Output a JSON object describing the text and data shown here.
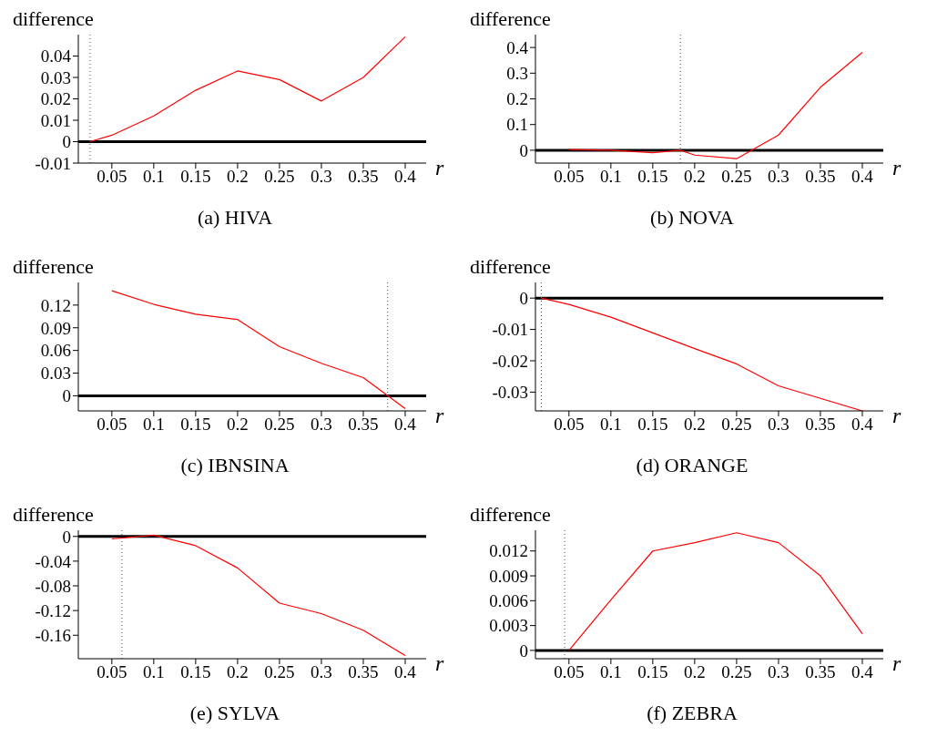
{
  "chart_data": [
    {
      "type": "line",
      "title": "(a) HIVA",
      "xlabel": "r",
      "ylabel": "difference",
      "x": [
        0.024,
        0.05,
        0.1,
        0.15,
        0.2,
        0.25,
        0.3,
        0.35,
        0.4
      ],
      "series": [
        {
          "color": "#ff0000",
          "values": [
            0,
            0.003,
            0.012,
            0.024,
            0.033,
            0.029,
            0.019,
            0.03,
            0.049
          ]
        }
      ],
      "xlim": [
        0.01,
        0.425
      ],
      "xticks": [
        0.05,
        0.1,
        0.15,
        0.2,
        0.25,
        0.3,
        0.35,
        0.4
      ],
      "ylim": [
        -0.01,
        0.05
      ],
      "yticks": [
        -0.01,
        0,
        0.01,
        0.02,
        0.03,
        0.04
      ],
      "ref_lines": [
        {
          "axis": "y",
          "value": 0,
          "color": "#000000",
          "line_style": "solid"
        },
        {
          "axis": "x",
          "value": 0.024,
          "color": "#555555",
          "line_style": "dotted"
        }
      ]
    },
    {
      "type": "line",
      "title": "(b) NOVA",
      "xlabel": "r",
      "ylabel": "difference",
      "x": [
        0.05,
        0.1,
        0.15,
        0.183,
        0.2,
        0.25,
        0.3,
        0.35,
        0.4
      ],
      "series": [
        {
          "color": "#ff0000",
          "values": [
            0.003,
            0,
            -0.01,
            0,
            -0.019,
            -0.033,
            0.059,
            0.245,
            0.381
          ]
        }
      ],
      "xlim": [
        0.01,
        0.425
      ],
      "xticks": [
        0.05,
        0.1,
        0.15,
        0.2,
        0.25,
        0.3,
        0.35,
        0.4
      ],
      "ylim": [
        -0.05,
        0.45
      ],
      "yticks": [
        0,
        0.1,
        0.2,
        0.3,
        0.4
      ],
      "ref_lines": [
        {
          "axis": "y",
          "value": 0,
          "color": "#000000",
          "line_style": "solid"
        },
        {
          "axis": "x",
          "value": 0.183,
          "color": "#555555",
          "line_style": "dotted"
        }
      ]
    },
    {
      "type": "line",
      "title": "(c) IBNSINA",
      "xlabel": "r",
      "ylabel": "difference",
      "x": [
        0.05,
        0.1,
        0.15,
        0.2,
        0.25,
        0.3,
        0.35,
        0.4
      ],
      "series": [
        {
          "color": "#ff0000",
          "values": [
            0.139,
            0.121,
            0.108,
            0.101,
            0.065,
            0.043,
            0.024,
            -0.017
          ]
        }
      ],
      "xlim": [
        0.01,
        0.425
      ],
      "xticks": [
        0.05,
        0.1,
        0.15,
        0.2,
        0.25,
        0.3,
        0.35,
        0.4
      ],
      "ylim": [
        -0.02,
        0.15
      ],
      "yticks": [
        0,
        0.03,
        0.06,
        0.09,
        0.12
      ],
      "ref_lines": [
        {
          "axis": "y",
          "value": 0,
          "color": "#000000",
          "line_style": "solid"
        },
        {
          "axis": "x",
          "value": 0.379,
          "color": "#555555",
          "line_style": "dotted"
        }
      ]
    },
    {
      "type": "line",
      "title": "(d) ORANGE",
      "xlabel": "r",
      "ylabel": "difference",
      "x": [
        0.017,
        0.05,
        0.1,
        0.15,
        0.2,
        0.25,
        0.3,
        0.35,
        0.4
      ],
      "series": [
        {
          "color": "#ff0000",
          "values": [
            0,
            -0.002,
            -0.0061,
            -0.0111,
            -0.0161,
            -0.021,
            -0.028,
            -0.032,
            -0.036
          ]
        }
      ],
      "xlim": [
        0.01,
        0.425
      ],
      "xticks": [
        0.05,
        0.1,
        0.15,
        0.2,
        0.25,
        0.3,
        0.35,
        0.4
      ],
      "ylim": [
        -0.036,
        0.005
      ],
      "yticks": [
        -0.03,
        -0.02,
        -0.01,
        0
      ],
      "ref_lines": [
        {
          "axis": "y",
          "value": 0,
          "color": "#000000",
          "line_style": "solid"
        },
        {
          "axis": "x",
          "value": 0.017,
          "color": "#555555",
          "line_style": "dotted"
        }
      ]
    },
    {
      "type": "line",
      "title": "(e) SYLVA",
      "xlabel": "r",
      "ylabel": "difference",
      "x": [
        0.05,
        0.1,
        0.15,
        0.2,
        0.25,
        0.3,
        0.35,
        0.4
      ],
      "series": [
        {
          "color": "#ff0000",
          "values": [
            -0.004,
            0.002,
            -0.015,
            -0.051,
            -0.108,
            -0.125,
            -0.152,
            -0.193
          ]
        }
      ],
      "xlim": [
        0.01,
        0.425
      ],
      "xticks": [
        0.05,
        0.1,
        0.15,
        0.2,
        0.25,
        0.3,
        0.35,
        0.4
      ],
      "ylim": [
        -0.198,
        0.01
      ],
      "yticks": [
        -0.16,
        -0.12,
        -0.08,
        -0.04,
        0
      ],
      "ref_lines": [
        {
          "axis": "y",
          "value": 0,
          "color": "#000000",
          "line_style": "solid"
        },
        {
          "axis": "x",
          "value": 0.062,
          "color": "#555555",
          "line_style": "dotted"
        }
      ]
    },
    {
      "type": "line",
      "title": "(f) ZEBRA",
      "xlabel": "r",
      "ylabel": "difference",
      "x": [
        0.05,
        0.1,
        0.15,
        0.2,
        0.25,
        0.3,
        0.35,
        0.4
      ],
      "series": [
        {
          "color": "#ff0000",
          "values": [
            0,
            0.0061,
            0.012,
            0.013,
            0.0142,
            0.013,
            0.009,
            0.002
          ]
        }
      ],
      "xlim": [
        0.01,
        0.425
      ],
      "xticks": [
        0.05,
        0.1,
        0.15,
        0.2,
        0.25,
        0.3,
        0.35,
        0.4
      ],
      "ylim": [
        -0.001,
        0.0145
      ],
      "yticks": [
        0,
        0.003,
        0.006,
        0.009,
        0.012
      ],
      "ref_lines": [
        {
          "axis": "y",
          "value": 0,
          "color": "#000000",
          "line_style": "solid"
        },
        {
          "axis": "x",
          "value": 0.045,
          "color": "#555555",
          "line_style": "dotted"
        }
      ]
    }
  ]
}
